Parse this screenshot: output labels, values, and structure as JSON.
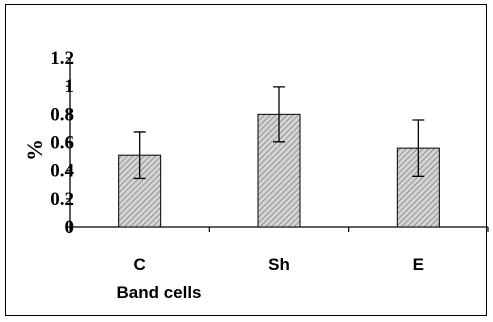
{
  "chart_data": {
    "type": "bar",
    "categories": [
      "C",
      "Sh",
      "E"
    ],
    "values": [
      0.51,
      0.8,
      0.56
    ],
    "errors": [
      0.165,
      0.195,
      0.2
    ],
    "ylim": [
      0,
      1.2
    ],
    "yticks": [
      "0",
      "0.2",
      "0.4",
      "0.6",
      "0.8",
      "1",
      "1.2"
    ],
    "ylabel": "%",
    "xlabel": "Band cells",
    "bar_color": "#c8c8c8",
    "grid": false,
    "legend": "none"
  }
}
